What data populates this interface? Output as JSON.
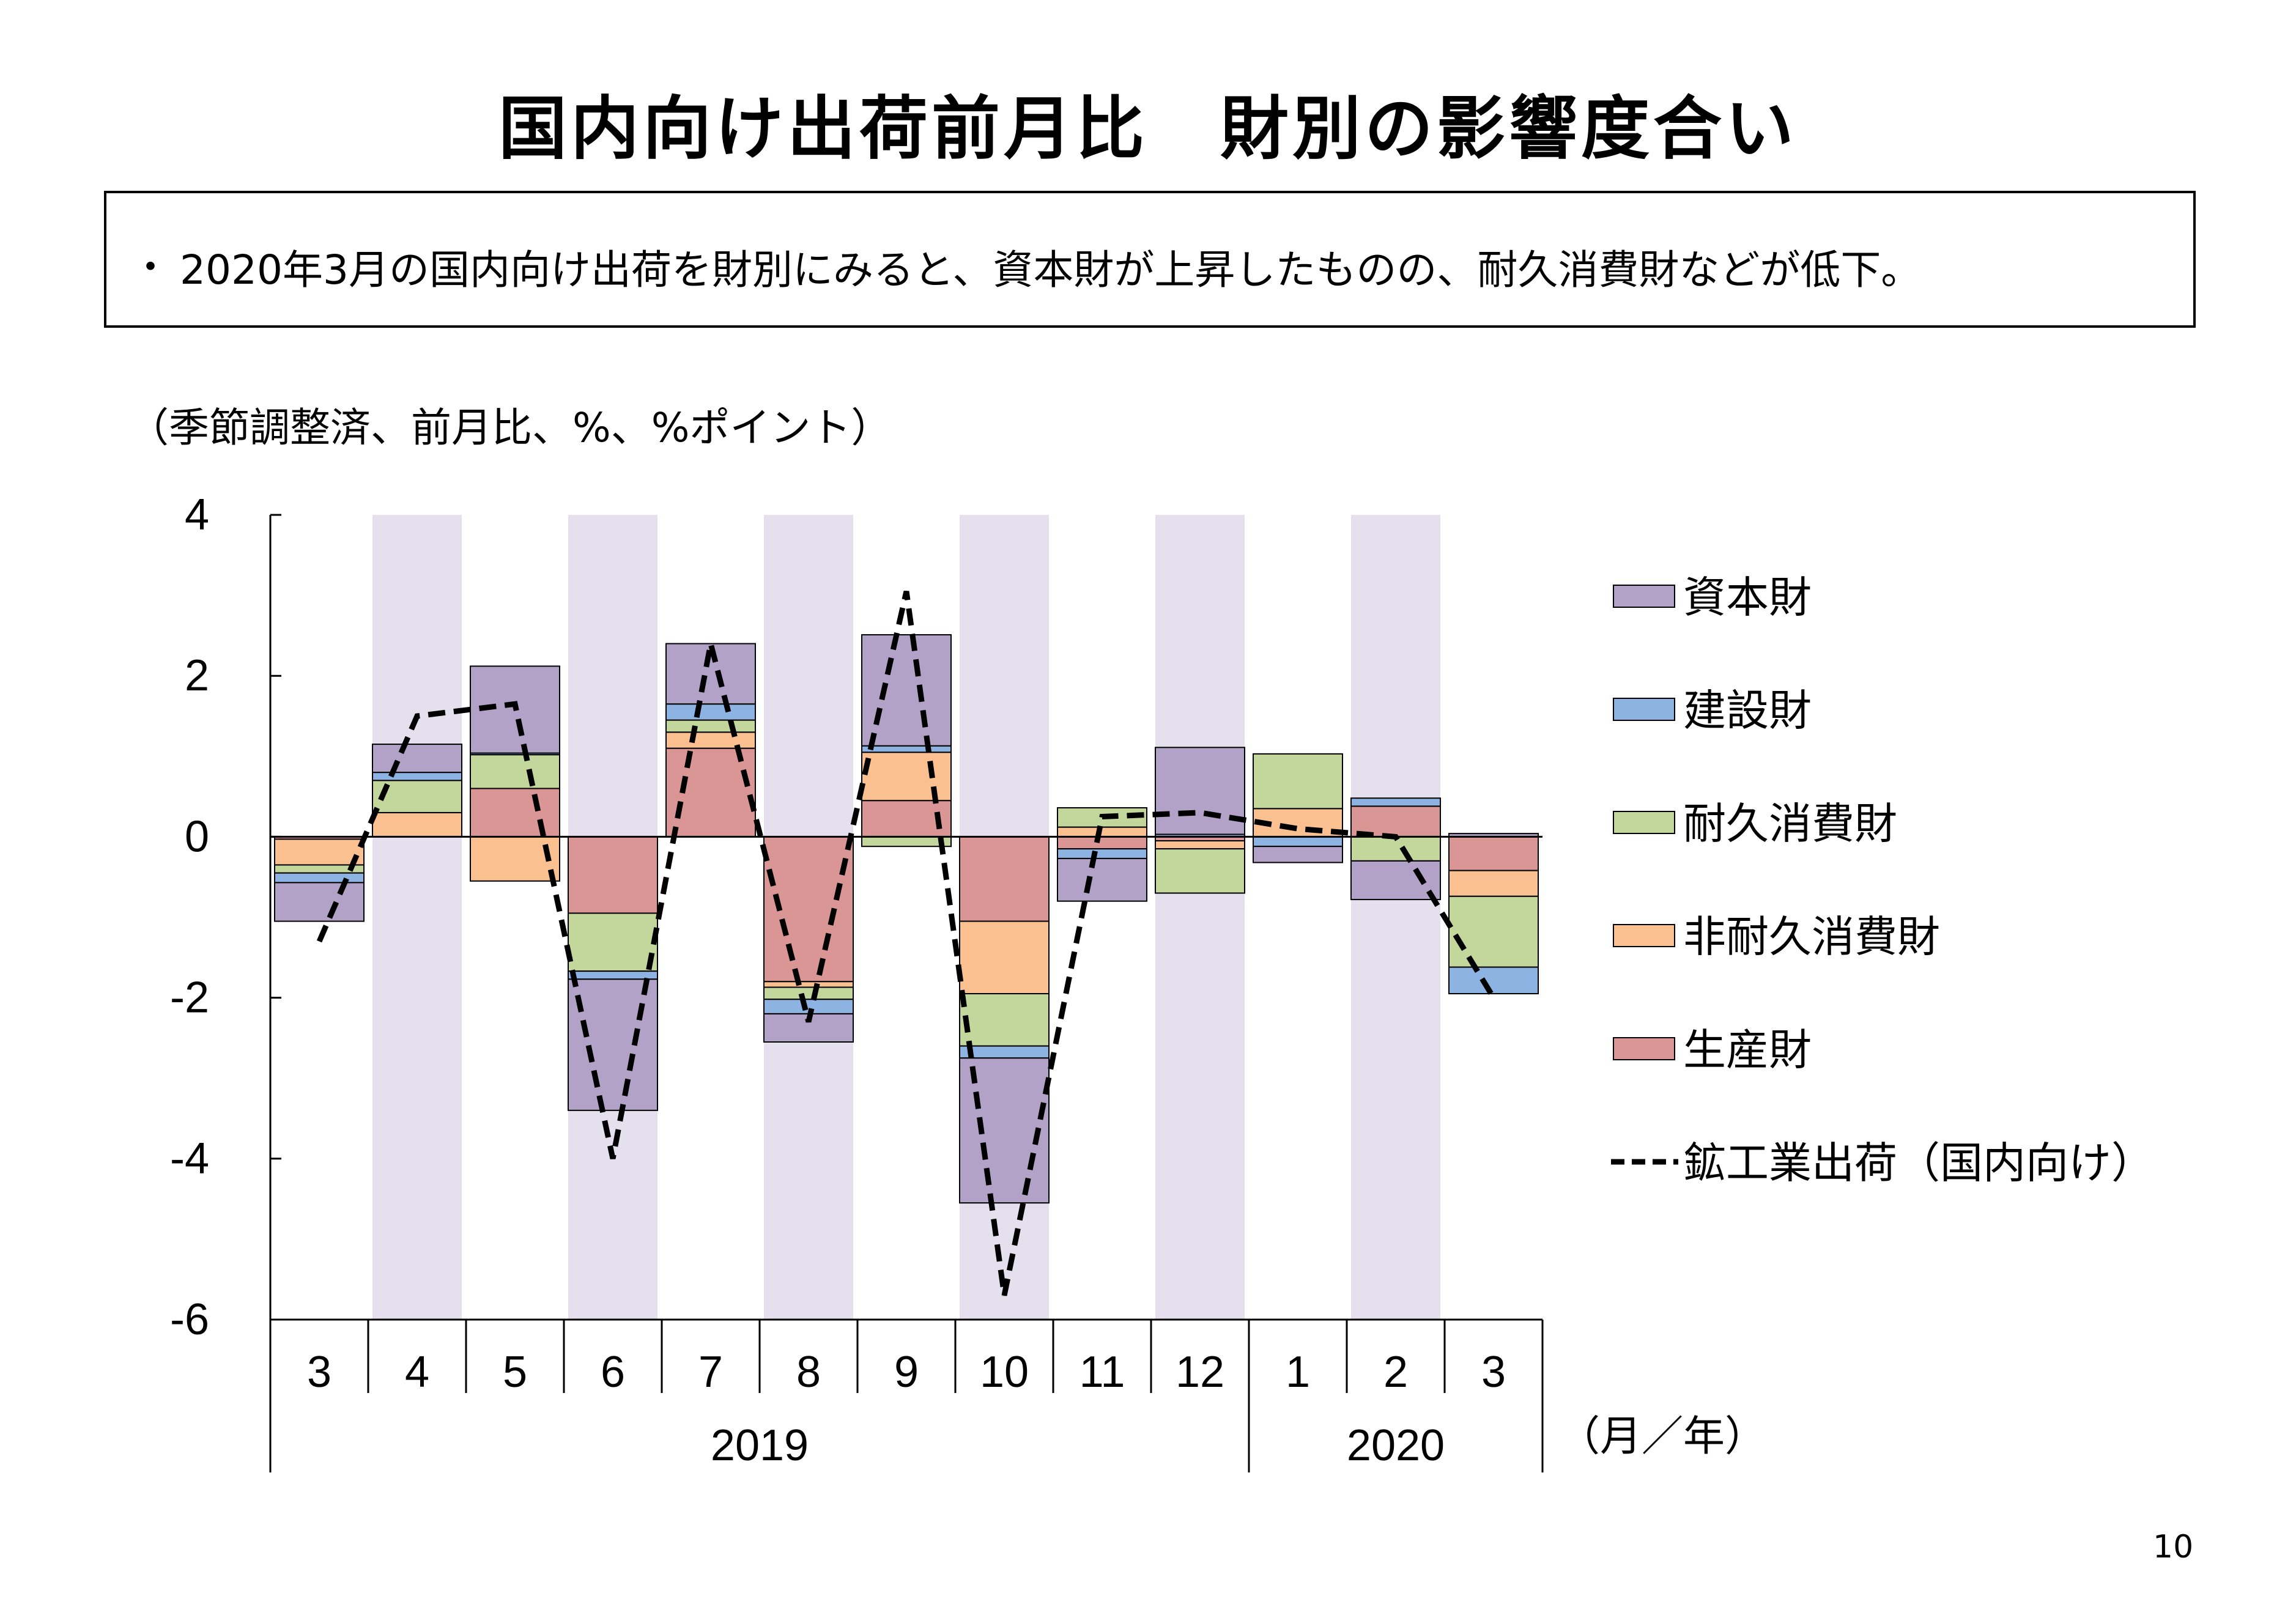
{
  "page": {
    "title": "国内向け出荷前月比　財別の影響度合い",
    "bullet": "・",
    "summary": "2020年3月の国内向け出荷を財別にみると、資本財が上昇したものの、耐久消費財などが低下。",
    "unit_note": "（季節調整済、前月比、%、%ポイント）",
    "page_number": "10"
  },
  "chart_data": {
    "type": "bar",
    "stacked": true,
    "categories": [
      "3",
      "4",
      "5",
      "6",
      "7",
      "8",
      "9",
      "10",
      "11",
      "12",
      "1",
      "2",
      "3"
    ],
    "year_groups": [
      {
        "label": "2019",
        "months": [
          "3",
          "4",
          "5",
          "6",
          "7",
          "8",
          "9",
          "10",
          "11",
          "12"
        ]
      },
      {
        "label": "2020",
        "months": [
          "1",
          "2",
          "3"
        ]
      }
    ],
    "x_unit": "（月／年）",
    "ylim": [
      -6,
      4
    ],
    "yticks": [
      "4",
      "2",
      "0",
      "-2",
      "-4",
      "-6"
    ],
    "ytick_values": [
      4,
      2,
      0,
      -2,
      -4,
      -6
    ],
    "shaded_categories": [
      "4",
      "6",
      "8",
      "10",
      "12",
      "2"
    ],
    "shade_color": "#e4e0ee",
    "legend_position": "right",
    "series": [
      {
        "name": "生産財",
        "color": "#d99694",
        "values": [
          -0.03,
          0.0,
          0.6,
          -0.95,
          1.1,
          -1.8,
          0.45,
          -1.05,
          -0.15,
          -0.05,
          0.0,
          0.38,
          -0.42
        ]
      },
      {
        "name": "非耐久消費財",
        "color": "#fac090",
        "values": [
          -0.32,
          0.3,
          -0.55,
          0.0,
          0.2,
          -0.07,
          0.6,
          -0.9,
          0.12,
          -0.1,
          0.35,
          0.0,
          -0.32
        ]
      },
      {
        "name": "耐久消費財",
        "color": "#c3d69b",
        "values": [
          -0.1,
          0.4,
          0.42,
          -0.72,
          0.15,
          -0.15,
          -0.12,
          -0.65,
          0.24,
          -0.55,
          0.68,
          -0.3,
          -0.88
        ]
      },
      {
        "name": "建設財",
        "color": "#8db3e2",
        "values": [
          -0.12,
          0.1,
          0.02,
          -0.1,
          0.2,
          -0.18,
          0.08,
          -0.15,
          -0.12,
          0.03,
          -0.12,
          0.1,
          -0.33
        ]
      },
      {
        "name": "資本財",
        "color": "#b3a2c7",
        "values": [
          -0.48,
          0.35,
          1.08,
          -1.63,
          0.75,
          -0.35,
          1.38,
          -1.8,
          -0.53,
          1.08,
          -0.2,
          -0.48,
          0.04
        ]
      }
    ],
    "line": {
      "name": "鉱工業出荷（国内向け）",
      "style": "dashed",
      "color": "#000000",
      "values": [
        -1.3,
        1.5,
        1.65,
        -4.0,
        2.4,
        -2.3,
        3.05,
        -5.7,
        0.25,
        0.3,
        0.1,
        0.0,
        -2.0
      ]
    },
    "legend_order": [
      "資本財",
      "建設財",
      "耐久消費財",
      "非耐久消費財",
      "生産財",
      "鉱工業出荷（国内向け）"
    ]
  }
}
